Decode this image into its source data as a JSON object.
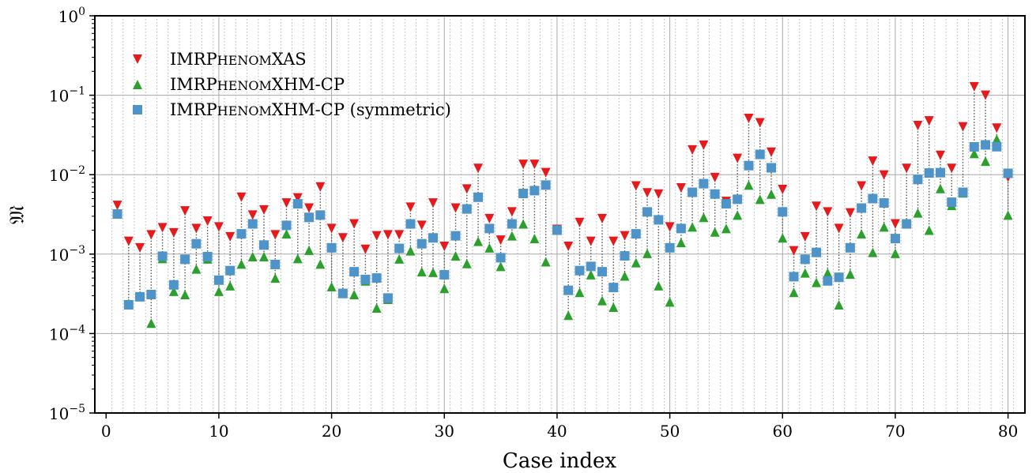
{
  "chart_data": {
    "type": "scatter",
    "xlabel": "Case index",
    "ylabel": "𝔐",
    "xlim": [
      -1,
      81.5
    ],
    "ylim": [
      1e-05,
      1
    ],
    "yscale": "log",
    "xticks": [
      0,
      10,
      20,
      30,
      40,
      50,
      60,
      70,
      80
    ],
    "yticks": [
      {
        "value": 1e-05,
        "base": "10",
        "exp": "−5"
      },
      {
        "value": 0.0001,
        "base": "10",
        "exp": "−4"
      },
      {
        "value": 0.001,
        "base": "10",
        "exp": "−3"
      },
      {
        "value": 0.01,
        "base": "10",
        "exp": "−2"
      },
      {
        "value": 0.1,
        "base": "10",
        "exp": "−1"
      },
      {
        "value": 1,
        "base": "10",
        "exp": "0"
      }
    ],
    "grid": true,
    "legend_position": "top-left",
    "series": [
      {
        "name": "IMRPhenomXAS",
        "name_parts": [
          [
            "IMRP",
            "large"
          ],
          [
            "HENOM",
            "small"
          ],
          [
            "XAS",
            "large"
          ]
        ],
        "marker": "triangle-down",
        "color": "#e41a1c",
        "values": [
          0.0041,
          0.00145,
          0.0012,
          0.00175,
          0.00215,
          0.00185,
          0.0035,
          0.0021,
          0.0026,
          0.0022,
          0.00165,
          0.0052,
          0.0031,
          0.0036,
          0.00175,
          0.0044,
          0.0051,
          0.0038,
          0.007,
          0.0021,
          0.0016,
          0.0024,
          0.00115,
          0.0017,
          0.00175,
          0.00175,
          0.0039,
          0.0023,
          0.0044,
          0.00125,
          0.0038,
          0.0066,
          0.012,
          0.0028,
          0.0015,
          0.0034,
          0.0135,
          0.0135,
          0.0106,
          0.00205,
          0.00125,
          0.0025,
          0.00145,
          0.0028,
          0.00145,
          0.0017,
          0.0072,
          0.0059,
          0.0057,
          0.0022,
          0.0068,
          0.0205,
          0.0235,
          0.0092,
          0.0046,
          0.016,
          0.051,
          0.045,
          0.0192,
          0.0065,
          0.0011,
          0.00165,
          0.004,
          0.0034,
          0.0021,
          0.0033,
          0.0072,
          0.0148,
          0.0099,
          0.0024,
          0.012,
          0.0415,
          0.0475,
          0.0175,
          0.012,
          0.04,
          0.128,
          0.1,
          0.0385,
          0.0093
        ]
      },
      {
        "name": "IMRPhenomXHM-CP",
        "name_parts": [
          [
            "IMRP",
            "large"
          ],
          [
            "HENOM",
            "small"
          ],
          [
            "XHM-CP",
            "large"
          ]
        ],
        "marker": "triangle-up",
        "color": "#2ca02c",
        "values": [
          0.0033,
          0.00024,
          0.0003,
          0.000135,
          0.00088,
          0.00034,
          0.00031,
          0.00065,
          0.00087,
          0.00034,
          0.0004,
          0.00075,
          0.00093,
          0.00093,
          0.0005,
          0.0018,
          0.00088,
          0.00112,
          0.00075,
          0.00039,
          0.00032,
          0.00031,
          0.00046,
          0.00021,
          0.00027,
          0.00087,
          0.0011,
          0.0006,
          0.00059,
          0.00037,
          0.00095,
          0.00076,
          0.00145,
          0.0012,
          0.0007,
          0.0017,
          0.0024,
          0.00157,
          0.0008,
          0.0021,
          0.00017,
          0.00033,
          0.00055,
          0.00026,
          0.000215,
          0.00053,
          0.00078,
          0.00102,
          0.0004,
          0.00025,
          0.0014,
          0.0022,
          0.0029,
          0.0019,
          0.0021,
          0.0031,
          0.0074,
          0.0049,
          0.0057,
          0.0016,
          0.00033,
          0.00058,
          0.00044,
          0.00058,
          0.00023,
          0.00056,
          0.0018,
          0.00105,
          0.0022,
          0.00102,
          0.0025,
          0.0033,
          0.002,
          0.0067,
          0.0041,
          0.0059,
          0.0185,
          0.0148,
          0.028,
          0.0031
        ]
      },
      {
        "name": "IMRPhenomXHM-CP (symmetric)",
        "name_parts": [
          [
            "IMRP",
            "large"
          ],
          [
            "HENOM",
            "small"
          ],
          [
            "XHM-CP (symmetric)",
            "large"
          ]
        ],
        "marker": "square",
        "color": "#4e94c8",
        "values": [
          0.0032,
          0.00023,
          0.00029,
          0.00031,
          0.00094,
          0.00041,
          0.00086,
          0.00135,
          0.00093,
          0.00047,
          0.00062,
          0.0018,
          0.0024,
          0.0013,
          0.00074,
          0.0023,
          0.0043,
          0.0029,
          0.0031,
          0.0012,
          0.00032,
          0.0006,
          0.00048,
          0.0005,
          0.00028,
          0.00118,
          0.0024,
          0.00135,
          0.0016,
          0.00055,
          0.0017,
          0.0037,
          0.0052,
          0.0021,
          0.0009,
          0.0024,
          0.0058,
          0.0063,
          0.0074,
          0.002,
          0.00035,
          0.00062,
          0.0007,
          0.0006,
          0.00038,
          0.00095,
          0.0018,
          0.0034,
          0.0027,
          0.0012,
          0.0021,
          0.006,
          0.0077,
          0.0057,
          0.0043,
          0.0049,
          0.013,
          0.018,
          0.0122,
          0.0034,
          0.00052,
          0.00086,
          0.00105,
          0.00046,
          0.00051,
          0.0012,
          0.0038,
          0.005,
          0.0044,
          0.00157,
          0.0024,
          0.0087,
          0.0105,
          0.0106,
          0.0045,
          0.006,
          0.0224,
          0.0237,
          0.0225,
          0.0104
        ]
      }
    ]
  }
}
